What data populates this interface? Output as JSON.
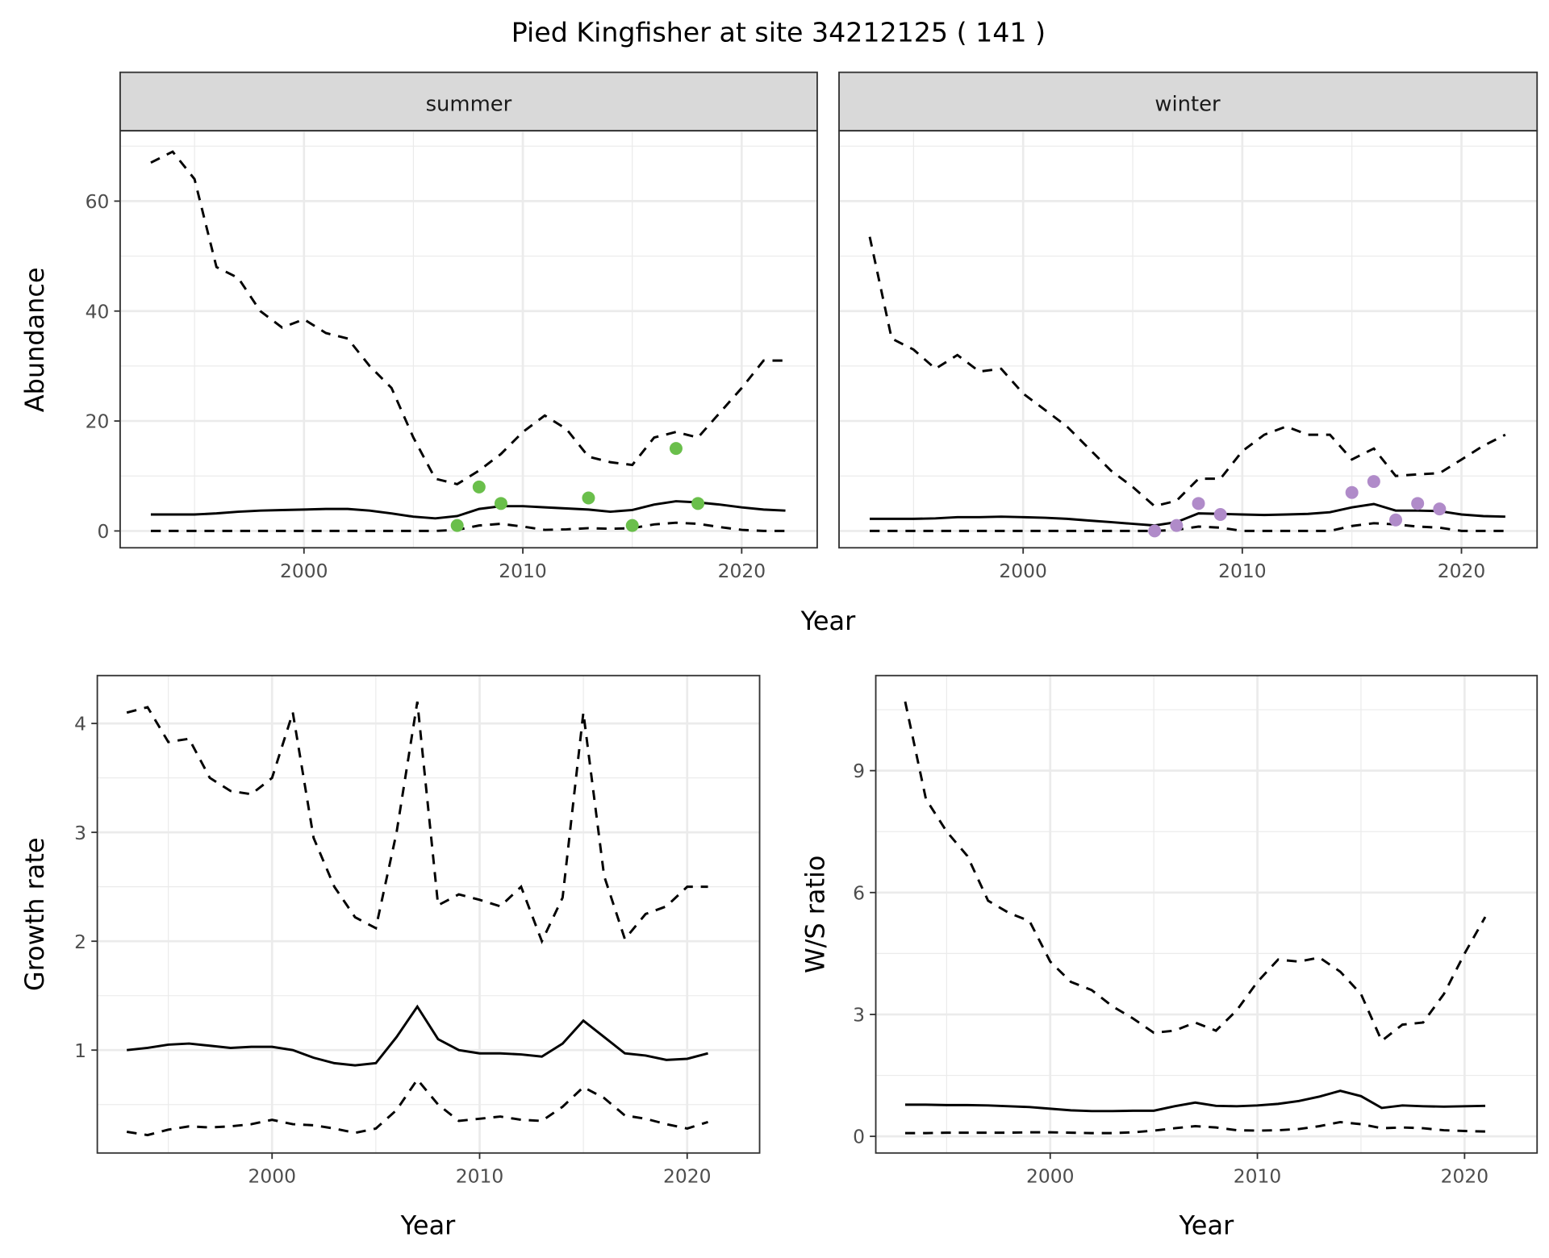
{
  "title": "Pied Kingfisher at site 34212125 ( 141 )",
  "colors": {
    "summer_points": "#6abf4b",
    "winter_points": "#b08bc9",
    "lines": "#000000",
    "grid": "#ebebeb",
    "strip": "#d9d9d9"
  },
  "chart_data": [
    {
      "type": "line",
      "facet": "summer",
      "xlabel": "Year",
      "ylabel": "Abundance",
      "xlim": [
        1991.6,
        2023.45
      ],
      "ylim": [
        -3.06,
        72.8
      ],
      "xticks": [
        2000,
        2010,
        2020
      ],
      "yticks": [
        0,
        20,
        40,
        60
      ],
      "grid": true,
      "x": [
        1993,
        1994,
        1995,
        1996,
        1997,
        1998,
        1999,
        2000,
        2001,
        2002,
        2003,
        2004,
        2005,
        2006,
        2007,
        2008,
        2009,
        2010,
        2011,
        2012,
        2013,
        2014,
        2015,
        2016,
        2017,
        2018,
        2019,
        2020,
        2021,
        2022
      ],
      "series": [
        {
          "style": "dashed",
          "values": [
            67,
            69,
            64,
            48,
            46,
            40,
            37,
            38.5,
            36,
            35,
            30,
            26,
            17,
            9.5,
            8.5,
            11,
            14,
            18,
            21,
            18.5,
            13.5,
            12.5,
            12,
            17,
            18,
            17,
            21.5,
            26,
            31,
            31
          ]
        },
        {
          "style": "solid",
          "values": [
            3,
            3,
            3,
            3.2,
            3.5,
            3.7,
            3.8,
            3.9,
            4,
            4,
            3.7,
            3.2,
            2.6,
            2.3,
            2.7,
            4,
            4.5,
            4.5,
            4.3,
            4.1,
            3.9,
            3.5,
            3.8,
            4.8,
            5.4,
            5.2,
            4.8,
            4.3,
            3.9,
            3.7
          ]
        },
        {
          "style": "dashed",
          "values": [
            0,
            0,
            0,
            0,
            0,
            0,
            0,
            0,
            0,
            0,
            0,
            0,
            0,
            0,
            0.2,
            1.0,
            1.3,
            0.8,
            0.2,
            0.3,
            0.5,
            0.4,
            0.5,
            1.2,
            1.5,
            1.3,
            0.7,
            0.2,
            0,
            0
          ]
        }
      ],
      "points": {
        "x": [
          2007,
          2008,
          2009,
          2013,
          2015,
          2017,
          2018
        ],
        "y": [
          1,
          8,
          5,
          6,
          1,
          15,
          5
        ]
      }
    },
    {
      "type": "line",
      "facet": "winter",
      "xlabel": "Year",
      "ylabel": "",
      "xlim": [
        1991.6,
        2023.45
      ],
      "ylim": [
        -3.06,
        72.8
      ],
      "xticks": [
        2000,
        2010,
        2020
      ],
      "yticks": [],
      "grid": true,
      "x": [
        1993,
        1994,
        1995,
        1996,
        1997,
        1998,
        1999,
        2000,
        2001,
        2002,
        2003,
        2004,
        2005,
        2006,
        2007,
        2008,
        2009,
        2010,
        2011,
        2012,
        2013,
        2014,
        2015,
        2016,
        2017,
        2018,
        2019,
        2020,
        2021,
        2022
      ],
      "series": [
        {
          "style": "dashed",
          "values": [
            53.5,
            35,
            33,
            29.5,
            32,
            29,
            29.5,
            25,
            22,
            19,
            15,
            11,
            8,
            4.5,
            5.5,
            9.5,
            9.5,
            14.5,
            17.5,
            19,
            17.5,
            17.5,
            13,
            15,
            10,
            10.3,
            10.5,
            13,
            15.5,
            17.5
          ]
        },
        {
          "style": "solid",
          "values": [
            2.2,
            2.2,
            2.2,
            2.3,
            2.5,
            2.5,
            2.6,
            2.5,
            2.4,
            2.2,
            1.9,
            1.6,
            1.3,
            1.0,
            1.6,
            3.2,
            3.1,
            3.0,
            2.9,
            3.0,
            3.1,
            3.4,
            4.3,
            4.9,
            3.7,
            3.7,
            3.6,
            3.0,
            2.7,
            2.6
          ]
        },
        {
          "style": "dashed",
          "values": [
            0,
            0,
            0,
            0,
            0,
            0,
            0,
            0,
            0,
            0,
            0,
            0,
            0,
            0,
            0.2,
            0.8,
            0.6,
            0,
            0,
            0,
            0,
            0,
            0.9,
            1.4,
            1.2,
            0.8,
            0.6,
            0,
            0,
            0
          ]
        }
      ],
      "points": {
        "x": [
          2006,
          2007,
          2008,
          2009,
          2015,
          2016,
          2017,
          2018,
          2019
        ],
        "y": [
          0,
          1,
          5,
          3,
          7,
          9,
          2,
          5,
          4
        ]
      }
    },
    {
      "type": "line",
      "xlabel": "Year",
      "ylabel": "Growth rate",
      "xlim": [
        1991.58,
        2023.49
      ],
      "ylim": [
        0.055,
        4.44
      ],
      "xticks": [
        2000,
        2010,
        2020
      ],
      "yticks": [
        1,
        2,
        3,
        4
      ],
      "grid": true,
      "x": [
        1993,
        1994,
        1995,
        1996,
        1997,
        1998,
        1999,
        2000,
        2001,
        2002,
        2003,
        2004,
        2005,
        2006,
        2007,
        2008,
        2009,
        2010,
        2011,
        2012,
        2013,
        2014,
        2015,
        2016,
        2017,
        2018,
        2019,
        2020,
        2021
      ],
      "series": [
        {
          "style": "dashed",
          "values": [
            4.1,
            4.15,
            3.83,
            3.86,
            3.5,
            3.38,
            3.35,
            3.5,
            4.1,
            2.95,
            2.5,
            2.22,
            2.12,
            3.0,
            4.2,
            2.33,
            2.43,
            2.38,
            2.32,
            2.5,
            2.0,
            2.4,
            4.1,
            2.6,
            2.02,
            2.25,
            2.32,
            2.5,
            2.5
          ]
        },
        {
          "style": "solid",
          "values": [
            1.0,
            1.02,
            1.05,
            1.06,
            1.04,
            1.02,
            1.03,
            1.03,
            1.0,
            0.93,
            0.88,
            0.86,
            0.88,
            1.12,
            1.4,
            1.1,
            1.0,
            0.97,
            0.97,
            0.96,
            0.94,
            1.06,
            1.27,
            1.12,
            0.97,
            0.95,
            0.91,
            0.92,
            0.97
          ]
        },
        {
          "style": "dashed",
          "values": [
            0.25,
            0.22,
            0.27,
            0.3,
            0.29,
            0.3,
            0.32,
            0.36,
            0.32,
            0.31,
            0.28,
            0.24,
            0.28,
            0.45,
            0.73,
            0.5,
            0.35,
            0.37,
            0.39,
            0.36,
            0.35,
            0.48,
            0.66,
            0.56,
            0.4,
            0.37,
            0.32,
            0.28,
            0.34
          ]
        }
      ]
    },
    {
      "type": "line",
      "xlabel": "Year",
      "ylabel": "W/S ratio",
      "xlim": [
        1991.58,
        2023.5
      ],
      "ylim": [
        -0.41,
        11.34
      ],
      "xticks": [
        2000,
        2010,
        2020
      ],
      "yticks": [
        0,
        3,
        6,
        9
      ],
      "grid": true,
      "x": [
        1993,
        1994,
        1995,
        1996,
        1997,
        1998,
        1999,
        2000,
        2001,
        2002,
        2003,
        2004,
        2005,
        2006,
        2007,
        2008,
        2009,
        2010,
        2011,
        2012,
        2013,
        2014,
        2015,
        2016,
        2017,
        2018,
        2019,
        2020,
        2021
      ],
      "series": [
        {
          "style": "dashed",
          "values": [
            10.7,
            8.3,
            7.5,
            6.9,
            5.8,
            5.5,
            5.3,
            4.3,
            3.8,
            3.6,
            3.2,
            2.9,
            2.55,
            2.6,
            2.8,
            2.6,
            3.1,
            3.8,
            4.35,
            4.3,
            4.4,
            4.05,
            3.5,
            2.35,
            2.75,
            2.8,
            3.5,
            4.5,
            5.4
          ]
        },
        {
          "style": "solid",
          "values": [
            0.78,
            0.78,
            0.77,
            0.77,
            0.76,
            0.74,
            0.72,
            0.68,
            0.64,
            0.62,
            0.62,
            0.63,
            0.63,
            0.74,
            0.83,
            0.75,
            0.74,
            0.76,
            0.8,
            0.87,
            0.98,
            1.12,
            0.99,
            0.7,
            0.76,
            0.74,
            0.73,
            0.74,
            0.75
          ]
        },
        {
          "style": "dashed",
          "values": [
            0.08,
            0.08,
            0.09,
            0.09,
            0.09,
            0.09,
            0.1,
            0.1,
            0.09,
            0.08,
            0.08,
            0.1,
            0.14,
            0.2,
            0.25,
            0.22,
            0.15,
            0.14,
            0.15,
            0.18,
            0.25,
            0.35,
            0.3,
            0.2,
            0.22,
            0.2,
            0.15,
            0.13,
            0.12
          ]
        }
      ]
    }
  ]
}
